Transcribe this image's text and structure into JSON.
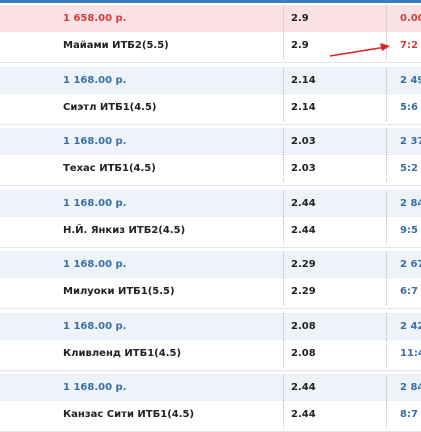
{
  "bets": [
    {
      "amount": "1 658.00 р.",
      "amount_odds": "2.9",
      "result": "0.00",
      "name": "Майами ИТБ2(5.5)",
      "odds": "2.9",
      "score": "7:2",
      "highlight": "red"
    },
    {
      "amount": "1 168.00 р.",
      "amount_odds": "2.14",
      "result": "2 49",
      "name": "Сиэтл ИТБ1(4.5)",
      "odds": "2.14",
      "score": "5:6",
      "highlight": "blue"
    },
    {
      "amount": "1 168.00 р.",
      "amount_odds": "2.03",
      "result": "2 37",
      "name": "Техас ИТБ1(4.5)",
      "odds": "2.03",
      "score": "5:2",
      "highlight": "blue"
    },
    {
      "amount": "1 168.00 р.",
      "amount_odds": "2.44",
      "result": "2 84",
      "name": "Н.Й. Янкиз ИТБ2(4.5)",
      "odds": "2.44",
      "score": "9:5",
      "highlight": "blue"
    },
    {
      "amount": "1 168.00 р.",
      "amount_odds": "2.29",
      "result": "2 67",
      "name": "Милуоки ИТБ1(5.5)",
      "odds": "2.29",
      "score": "6:7",
      "highlight": "blue"
    },
    {
      "amount": "1 168.00 р.",
      "amount_odds": "2.08",
      "result": "2 42",
      "name": "Кливленд ИТБ1(4.5)",
      "odds": "2.08",
      "score": "11:4",
      "highlight": "blue"
    },
    {
      "amount": "1 168.00 р.",
      "amount_odds": "2.44",
      "result": "2 84",
      "name": "Канзас Сити ИТБ1(4.5)",
      "odds": "2.44",
      "score": "8:7",
      "highlight": "blue"
    }
  ]
}
